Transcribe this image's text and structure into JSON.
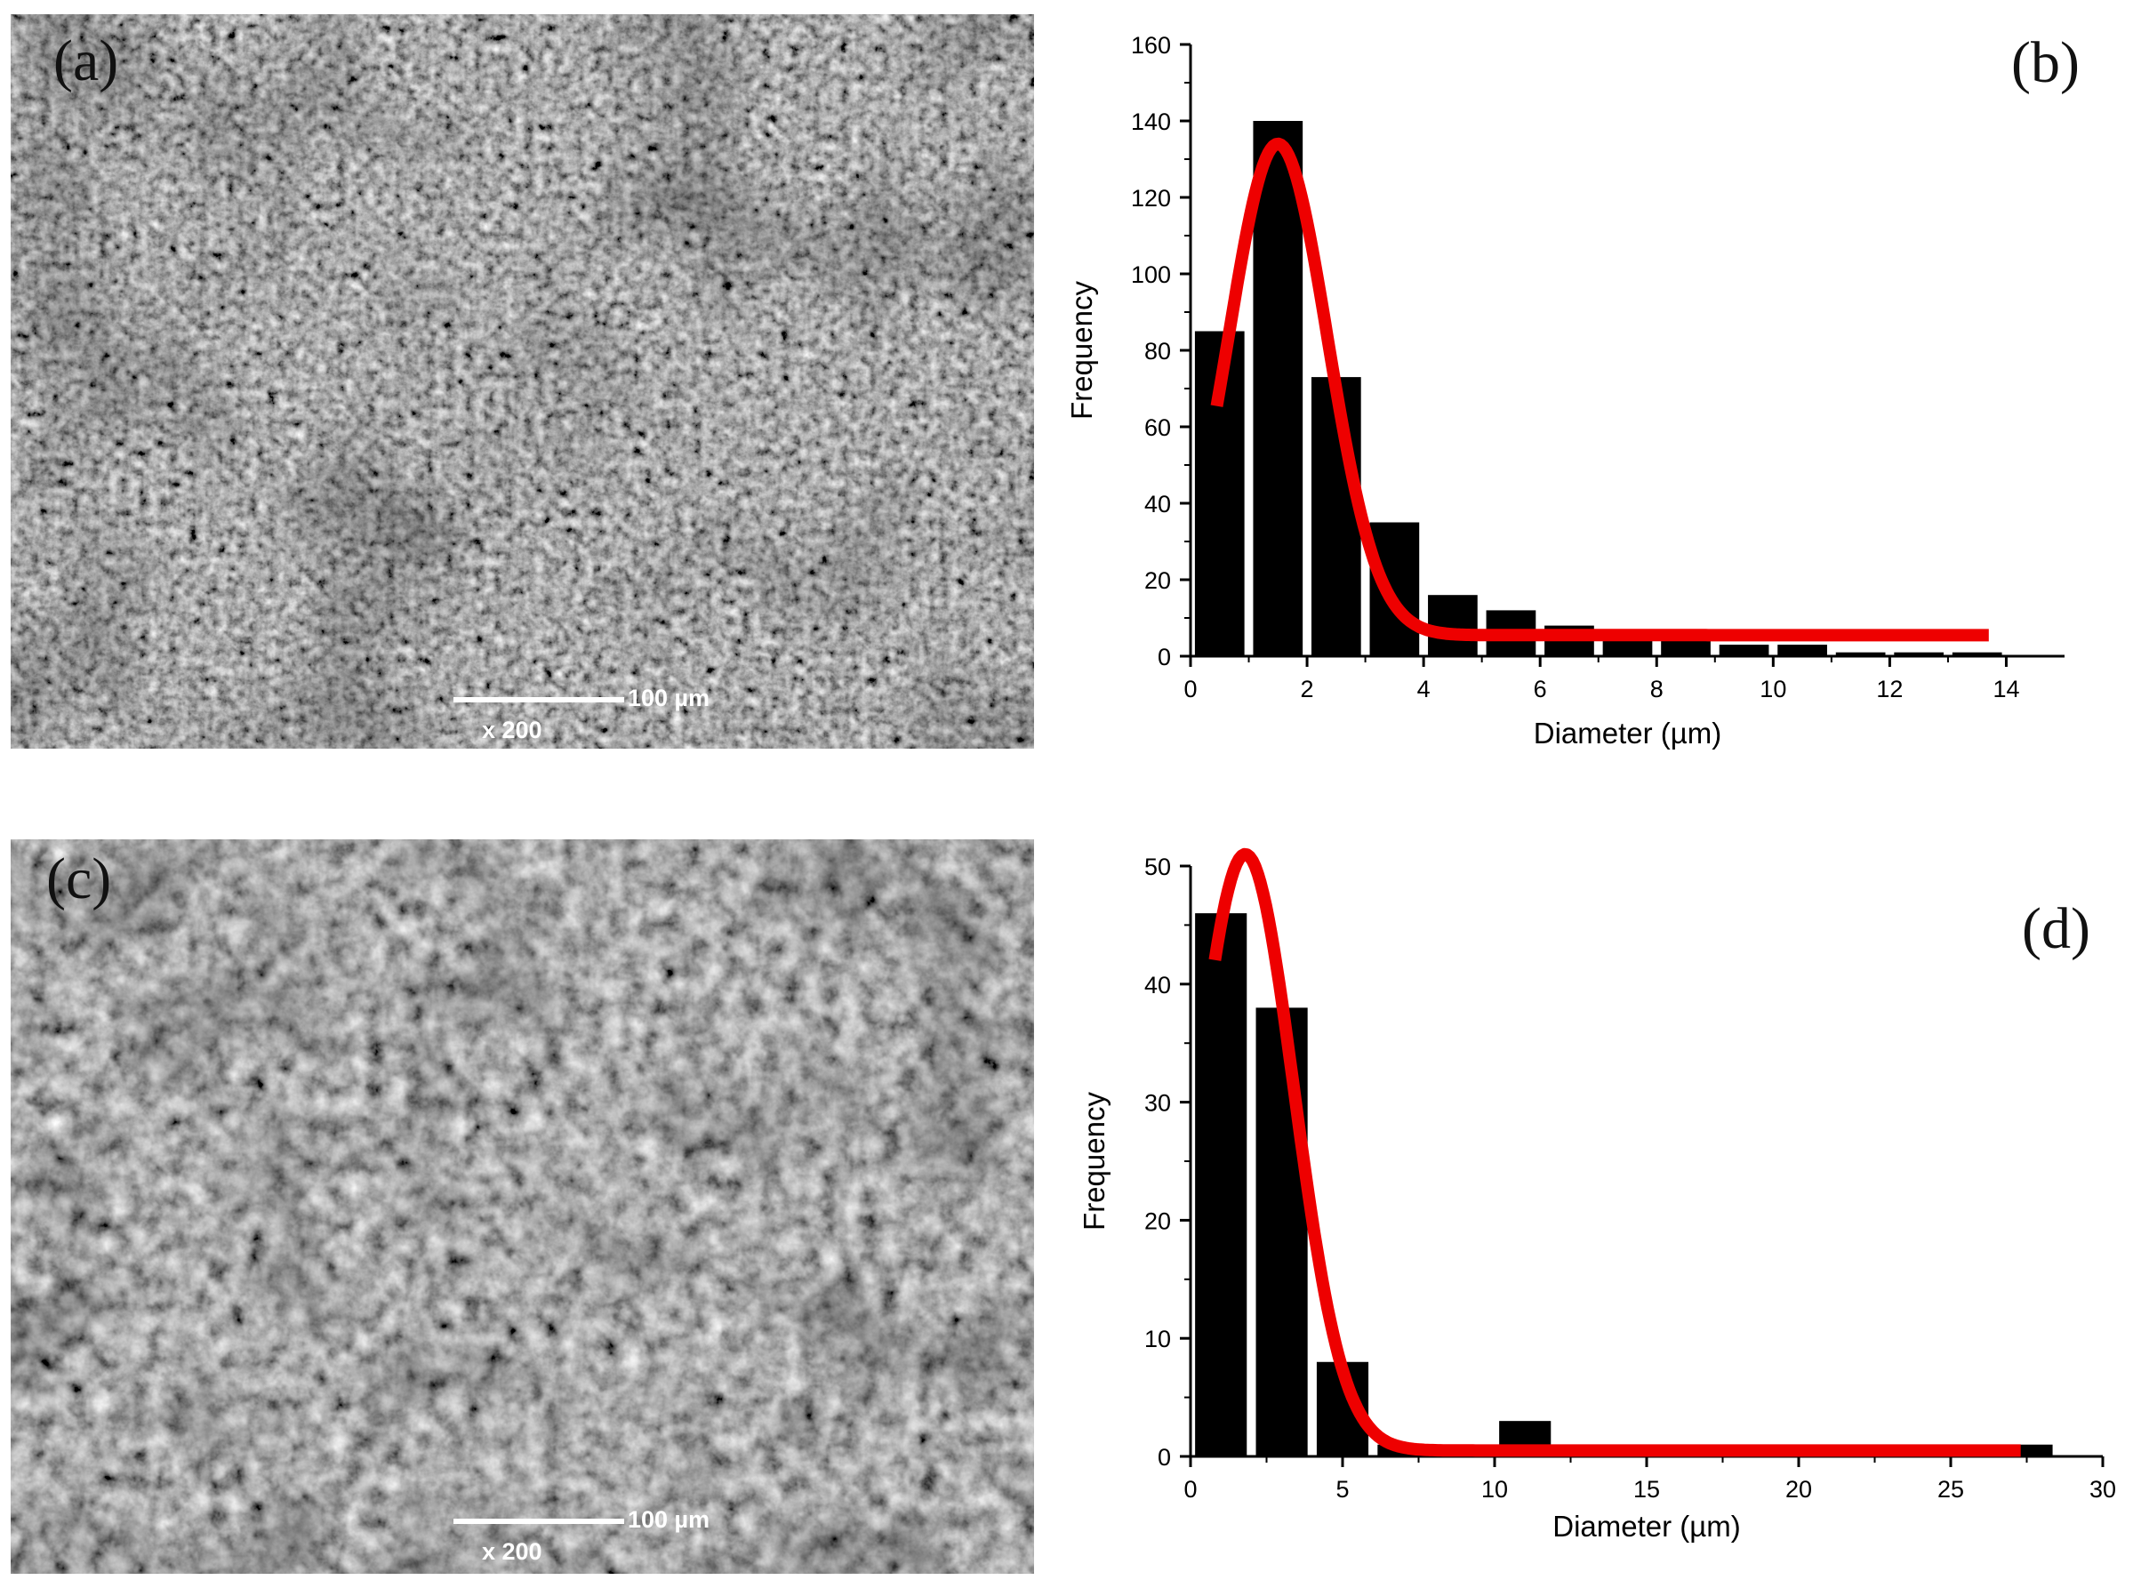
{
  "panels": {
    "a": {
      "label": "(a)",
      "scale_text": "100 µm",
      "mag_text": "x 200"
    },
    "b": {
      "label": "(b)"
    },
    "c": {
      "label": "(c)",
      "scale_text": "100 µm",
      "mag_text": "x 200"
    },
    "d": {
      "label": "(d)"
    }
  },
  "colors": {
    "bars": "#000000",
    "fit": "#ee0000",
    "sem_base": "#6a6a6a"
  },
  "chart_data": [
    {
      "type": "bar",
      "panel": "b",
      "xlabel": "Diameter (µm)",
      "ylabel": "Frequency",
      "xlim": [
        0,
        15
      ],
      "ylim": [
        0,
        160
      ],
      "xticks": [
        0,
        2,
        4,
        6,
        8,
        10,
        12,
        14
      ],
      "yticks": [
        0,
        20,
        40,
        60,
        80,
        100,
        120,
        140,
        160
      ],
      "bar_width": 0.85,
      "bars": [
        {
          "x": 0.5,
          "value": 85
        },
        {
          "x": 1.5,
          "value": 140
        },
        {
          "x": 2.5,
          "value": 73
        },
        {
          "x": 3.5,
          "value": 35
        },
        {
          "x": 4.5,
          "value": 16
        },
        {
          "x": 5.5,
          "value": 12
        },
        {
          "x": 6.5,
          "value": 8
        },
        {
          "x": 7.5,
          "value": 6
        },
        {
          "x": 8.5,
          "value": 5
        },
        {
          "x": 9.5,
          "value": 3
        },
        {
          "x": 10.5,
          "value": 3
        },
        {
          "x": 11.5,
          "value": 1
        },
        {
          "x": 12.5,
          "value": 1
        },
        {
          "x": 13.5,
          "value": 1
        }
      ],
      "fit": {
        "type": "gaussian",
        "baseline": 5.5,
        "amplitude": 128.5,
        "center": 1.5,
        "sigma": 0.85,
        "x_range": [
          0.45,
          13.7
        ]
      },
      "grid": false,
      "legend": "none"
    },
    {
      "type": "bar",
      "panel": "d",
      "xlabel": "Diameter (µm)",
      "ylabel": "Frequency",
      "xlim": [
        0,
        30
      ],
      "ylim": [
        0,
        50
      ],
      "xticks": [
        0,
        5,
        10,
        15,
        20,
        25,
        30
      ],
      "yticks": [
        0,
        10,
        20,
        30,
        40,
        50
      ],
      "bar_width": 1.7,
      "bars": [
        {
          "x": 1,
          "value": 46
        },
        {
          "x": 3,
          "value": 38
        },
        {
          "x": 5,
          "value": 8
        },
        {
          "x": 7,
          "value": 1
        },
        {
          "x": 11,
          "value": 3
        },
        {
          "x": 27.5,
          "value": 1
        }
      ],
      "fit": {
        "type": "gaussian",
        "baseline": 0.5,
        "amplitude": 50.5,
        "center": 1.8,
        "sigma": 1.6,
        "x_range": [
          0.8,
          27.3
        ]
      },
      "grid": false,
      "legend": "none"
    }
  ]
}
